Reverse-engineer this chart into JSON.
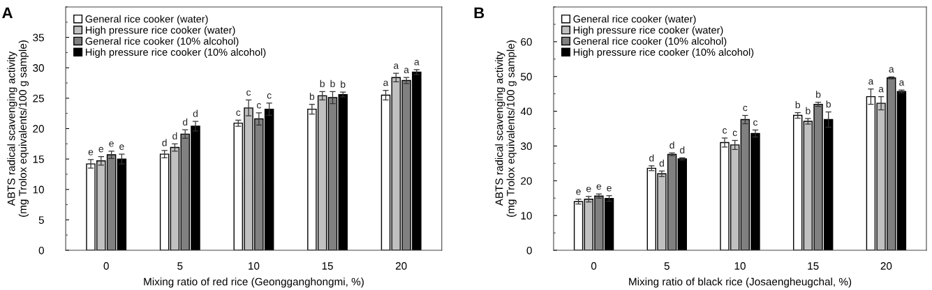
{
  "chart_data": [
    {
      "type": "bar",
      "title": "A",
      "xlabel": "Mixing ratio of red rice (Geongganghongmi, %)",
      "ylabel": "ABTS radical scavenging activity\n(mg Trolox equivalents/100 g sample)",
      "categories": [
        "0",
        "5",
        "10",
        "15",
        "20"
      ],
      "ylim": [
        0,
        40
      ],
      "yticks": [
        0,
        5,
        10,
        15,
        20,
        25,
        30,
        35
      ],
      "legend": "top left",
      "grid": false,
      "series": [
        {
          "name": "General rice cooker (water)",
          "color": "#ffffff",
          "values": [
            14.2,
            15.8,
            20.9,
            23.2,
            25.5
          ],
          "errors": [
            0.7,
            0.6,
            0.5,
            0.8,
            0.8
          ],
          "value_labels": [
            "e",
            "d",
            "c",
            "b",
            "a"
          ]
        },
        {
          "name": "High pressure rice cooker (water)",
          "color": "#c0c0c0",
          "values": [
            14.7,
            16.9,
            23.4,
            25.4,
            28.4
          ],
          "errors": [
            0.7,
            0.6,
            1.3,
            0.7,
            0.7
          ],
          "value_labels": [
            "e",
            "d",
            "c",
            "b",
            "a"
          ]
        },
        {
          "name": "General rice cooker (10% alcohol)",
          "color": "#808080",
          "values": [
            15.7,
            19.1,
            21.6,
            25.1,
            27.9
          ],
          "errors": [
            0.6,
            0.7,
            1.0,
            1.0,
            0.5
          ],
          "value_labels": [
            "e",
            "d",
            "c",
            "b",
            "a"
          ]
        },
        {
          "name": "High pressure rice cooker (10% alcohol)",
          "color": "#000000",
          "values": [
            15.0,
            20.4,
            23.2,
            25.6,
            29.3
          ],
          "errors": [
            0.8,
            0.8,
            1.0,
            0.4,
            0.4
          ],
          "value_labels": [
            "e",
            "d",
            "c",
            "b",
            "a"
          ]
        }
      ]
    },
    {
      "type": "bar",
      "title": "B",
      "xlabel": "Mixing ratio of black rice (Josaengheugchal, %)",
      "ylabel": "ABTS radical scavenging activity\n(mg Trolox equivalents/100 g sample)",
      "categories": [
        "0",
        "5",
        "10",
        "15",
        "20"
      ],
      "ylim": [
        0,
        70
      ],
      "yticks": [
        0,
        10,
        20,
        30,
        40,
        50,
        60
      ],
      "legend": "top left",
      "grid": false,
      "series": [
        {
          "name": "General rice cooker (water)",
          "color": "#ffffff",
          "values": [
            14.0,
            23.6,
            31.0,
            38.8,
            44.2
          ],
          "errors": [
            0.7,
            0.7,
            1.3,
            0.8,
            2.2
          ],
          "value_labels": [
            "e",
            "d",
            "c",
            "b",
            "a"
          ]
        },
        {
          "name": "High pressure rice cooker (water)",
          "color": "#c0c0c0",
          "values": [
            14.7,
            22.0,
            30.3,
            37.1,
            42.3
          ],
          "errors": [
            0.8,
            0.8,
            1.3,
            0.8,
            1.9
          ],
          "value_labels": [
            "e",
            "d",
            "c",
            "b",
            "a"
          ]
        },
        {
          "name": "General rice cooker (10% alcohol)",
          "color": "#808080",
          "values": [
            15.6,
            27.6,
            37.6,
            42.0,
            49.6
          ],
          "errors": [
            0.6,
            0.4,
            1.2,
            0.6,
            0.3
          ],
          "value_labels": [
            "e",
            "d",
            "c",
            "b",
            "a"
          ]
        },
        {
          "name": "High pressure rice cooker (10% alcohol)",
          "color": "#000000",
          "values": [
            14.9,
            26.3,
            33.6,
            37.6,
            45.7
          ],
          "errors": [
            0.8,
            0.3,
            1.0,
            2.2,
            0.4
          ],
          "value_labels": [
            "e",
            "d",
            "c",
            "b",
            "a"
          ]
        }
      ]
    }
  ]
}
